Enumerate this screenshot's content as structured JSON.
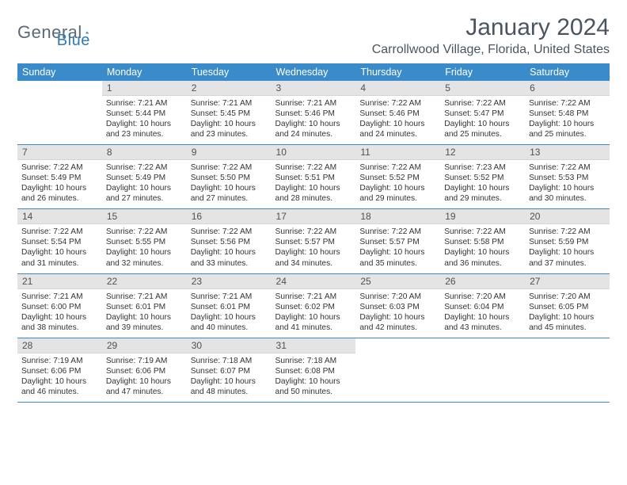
{
  "logo": {
    "word1": "General",
    "word2": "Blue"
  },
  "title": "January 2024",
  "location": "Carrollwood Village, Florida, United States",
  "colors": {
    "header_bg": "#3a8bc9",
    "header_fg": "#ffffff",
    "daynum_bg": "#e4e4e4",
    "row_border": "#3a8bc9",
    "logo_gray": "#5a6a78",
    "logo_blue": "#2c7bb6",
    "title_color": "#4a5560"
  },
  "weekdays": [
    "Sunday",
    "Monday",
    "Tuesday",
    "Wednesday",
    "Thursday",
    "Friday",
    "Saturday"
  ],
  "weeks": [
    [
      {
        "n": "",
        "sr": "",
        "ss": "",
        "dl": ""
      },
      {
        "n": "1",
        "sr": "7:21 AM",
        "ss": "5:44 PM",
        "dl": "10 hours and 23 minutes."
      },
      {
        "n": "2",
        "sr": "7:21 AM",
        "ss": "5:45 PM",
        "dl": "10 hours and 23 minutes."
      },
      {
        "n": "3",
        "sr": "7:21 AM",
        "ss": "5:46 PM",
        "dl": "10 hours and 24 minutes."
      },
      {
        "n": "4",
        "sr": "7:22 AM",
        "ss": "5:46 PM",
        "dl": "10 hours and 24 minutes."
      },
      {
        "n": "5",
        "sr": "7:22 AM",
        "ss": "5:47 PM",
        "dl": "10 hours and 25 minutes."
      },
      {
        "n": "6",
        "sr": "7:22 AM",
        "ss": "5:48 PM",
        "dl": "10 hours and 25 minutes."
      }
    ],
    [
      {
        "n": "7",
        "sr": "7:22 AM",
        "ss": "5:49 PM",
        "dl": "10 hours and 26 minutes."
      },
      {
        "n": "8",
        "sr": "7:22 AM",
        "ss": "5:49 PM",
        "dl": "10 hours and 27 minutes."
      },
      {
        "n": "9",
        "sr": "7:22 AM",
        "ss": "5:50 PM",
        "dl": "10 hours and 27 minutes."
      },
      {
        "n": "10",
        "sr": "7:22 AM",
        "ss": "5:51 PM",
        "dl": "10 hours and 28 minutes."
      },
      {
        "n": "11",
        "sr": "7:22 AM",
        "ss": "5:52 PM",
        "dl": "10 hours and 29 minutes."
      },
      {
        "n": "12",
        "sr": "7:23 AM",
        "ss": "5:52 PM",
        "dl": "10 hours and 29 minutes."
      },
      {
        "n": "13",
        "sr": "7:22 AM",
        "ss": "5:53 PM",
        "dl": "10 hours and 30 minutes."
      }
    ],
    [
      {
        "n": "14",
        "sr": "7:22 AM",
        "ss": "5:54 PM",
        "dl": "10 hours and 31 minutes."
      },
      {
        "n": "15",
        "sr": "7:22 AM",
        "ss": "5:55 PM",
        "dl": "10 hours and 32 minutes."
      },
      {
        "n": "16",
        "sr": "7:22 AM",
        "ss": "5:56 PM",
        "dl": "10 hours and 33 minutes."
      },
      {
        "n": "17",
        "sr": "7:22 AM",
        "ss": "5:57 PM",
        "dl": "10 hours and 34 minutes."
      },
      {
        "n": "18",
        "sr": "7:22 AM",
        "ss": "5:57 PM",
        "dl": "10 hours and 35 minutes."
      },
      {
        "n": "19",
        "sr": "7:22 AM",
        "ss": "5:58 PM",
        "dl": "10 hours and 36 minutes."
      },
      {
        "n": "20",
        "sr": "7:22 AM",
        "ss": "5:59 PM",
        "dl": "10 hours and 37 minutes."
      }
    ],
    [
      {
        "n": "21",
        "sr": "7:21 AM",
        "ss": "6:00 PM",
        "dl": "10 hours and 38 minutes."
      },
      {
        "n": "22",
        "sr": "7:21 AM",
        "ss": "6:01 PM",
        "dl": "10 hours and 39 minutes."
      },
      {
        "n": "23",
        "sr": "7:21 AM",
        "ss": "6:01 PM",
        "dl": "10 hours and 40 minutes."
      },
      {
        "n": "24",
        "sr": "7:21 AM",
        "ss": "6:02 PM",
        "dl": "10 hours and 41 minutes."
      },
      {
        "n": "25",
        "sr": "7:20 AM",
        "ss": "6:03 PM",
        "dl": "10 hours and 42 minutes."
      },
      {
        "n": "26",
        "sr": "7:20 AM",
        "ss": "6:04 PM",
        "dl": "10 hours and 43 minutes."
      },
      {
        "n": "27",
        "sr": "7:20 AM",
        "ss": "6:05 PM",
        "dl": "10 hours and 45 minutes."
      }
    ],
    [
      {
        "n": "28",
        "sr": "7:19 AM",
        "ss": "6:06 PM",
        "dl": "10 hours and 46 minutes."
      },
      {
        "n": "29",
        "sr": "7:19 AM",
        "ss": "6:06 PM",
        "dl": "10 hours and 47 minutes."
      },
      {
        "n": "30",
        "sr": "7:18 AM",
        "ss": "6:07 PM",
        "dl": "10 hours and 48 minutes."
      },
      {
        "n": "31",
        "sr": "7:18 AM",
        "ss": "6:08 PM",
        "dl": "10 hours and 50 minutes."
      },
      {
        "n": "",
        "sr": "",
        "ss": "",
        "dl": ""
      },
      {
        "n": "",
        "sr": "",
        "ss": "",
        "dl": ""
      },
      {
        "n": "",
        "sr": "",
        "ss": "",
        "dl": ""
      }
    ]
  ],
  "labels": {
    "sunrise": "Sunrise: ",
    "sunset": "Sunset: ",
    "daylight": "Daylight: "
  }
}
